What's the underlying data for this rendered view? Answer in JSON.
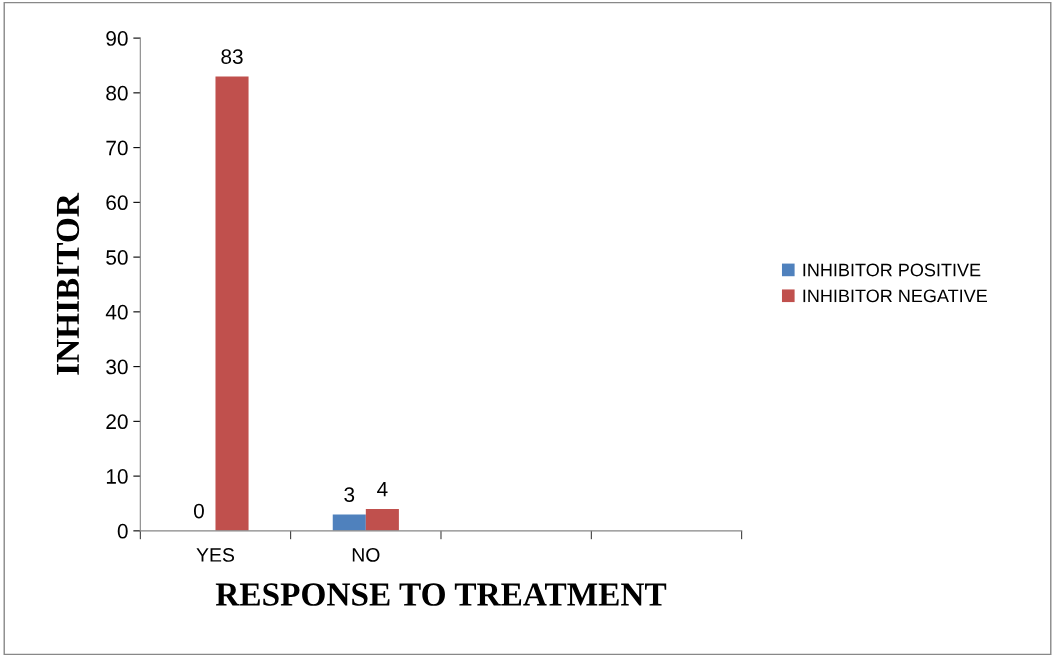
{
  "chart_data": {
    "type": "bar",
    "xlabel": "RESPONSE TO TREATMENT",
    "ylabel": "INHIBITOR",
    "categories": [
      "YES",
      "NO",
      null,
      null
    ],
    "series": [
      {
        "name": "INHIBITOR POSITIVE",
        "color": "#4f81bd",
        "values": [
          0,
          3,
          null,
          null
        ]
      },
      {
        "name": "INHIBITOR NEGATIVE",
        "color": "#c0504d",
        "values": [
          83,
          4,
          null,
          null
        ]
      }
    ],
    "ylim": [
      0,
      90
    ],
    "yticks": [
      0,
      10,
      20,
      30,
      40,
      50,
      60,
      70,
      80,
      90
    ],
    "data_labels": true,
    "grid": false,
    "legend": "right"
  }
}
